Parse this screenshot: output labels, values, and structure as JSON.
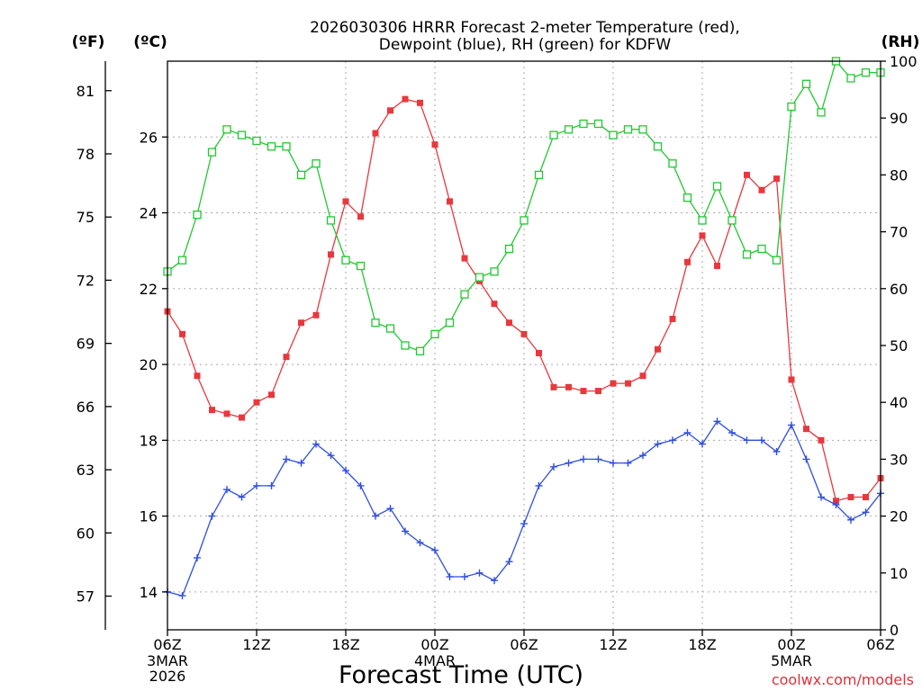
{
  "chart_data": {
    "type": "line",
    "title": "2026030306 HRRR Forecast 2-meter Temperature (red),",
    "subtitle": "Dewpoint (blue), RH (green) for KDFW",
    "xlabel": "Forecast Time (UTC)",
    "credit": "coolwx.com/models",
    "units": {
      "fahrenheit": "(ºF)",
      "celsius": "(ºC)",
      "rh": "(RH)"
    },
    "x_range_hours": [
      0,
      48
    ],
    "celsius_range": [
      13,
      28
    ],
    "rh_range": [
      0,
      100
    ],
    "x_ticks": [
      {
        "hour": 0,
        "label": "06Z",
        "sub1": "3MAR",
        "sub2": "2026"
      },
      {
        "hour": 6,
        "label": "12Z",
        "sub1": "",
        "sub2": ""
      },
      {
        "hour": 12,
        "label": "18Z",
        "sub1": "",
        "sub2": ""
      },
      {
        "hour": 18,
        "label": "00Z",
        "sub1": "4MAR",
        "sub2": ""
      },
      {
        "hour": 24,
        "label": "06Z",
        "sub1": "",
        "sub2": ""
      },
      {
        "hour": 30,
        "label": "12Z",
        "sub1": "",
        "sub2": ""
      },
      {
        "hour": 36,
        "label": "18Z",
        "sub1": "",
        "sub2": ""
      },
      {
        "hour": 42,
        "label": "00Z",
        "sub1": "5MAR",
        "sub2": ""
      },
      {
        "hour": 48,
        "label": "06Z",
        "sub1": "",
        "sub2": ""
      }
    ],
    "celsius_ticks": [
      "14",
      "16",
      "18",
      "20",
      "22",
      "24",
      "26"
    ],
    "fahrenheit_ticks": [
      "57",
      "60",
      "63",
      "66",
      "69",
      "72",
      "75",
      "78",
      "81"
    ],
    "rh_ticks": [
      "0",
      "10",
      "20",
      "30",
      "40",
      "50",
      "60",
      "70",
      "80",
      "90",
      "100"
    ],
    "series": [
      {
        "name": "Temperature",
        "color": "#e8383d",
        "marker": "filled-square",
        "values": [
          21.4,
          20.8,
          19.7,
          18.8,
          18.7,
          18.6,
          19.0,
          19.2,
          20.2,
          21.1,
          21.3,
          22.9,
          24.3,
          23.9,
          26.1,
          26.7,
          27.0,
          26.9,
          25.8,
          24.3,
          22.8,
          22.2,
          21.6,
          21.1,
          20.8,
          20.3,
          19.4,
          19.4,
          19.3,
          19.3,
          19.5,
          19.5,
          19.7,
          20.4,
          21.2,
          22.7,
          23.4,
          22.6,
          23.8,
          25.0,
          24.6,
          24.9,
          19.6,
          18.3,
          18.0,
          16.4,
          16.5,
          16.5,
          17.0
        ]
      },
      {
        "name": "Dewpoint",
        "color": "#2f4ee0",
        "marker": "plus",
        "values": [
          14.0,
          13.9,
          14.9,
          16.0,
          16.7,
          16.5,
          16.8,
          16.8,
          17.5,
          17.4,
          17.9,
          17.6,
          17.2,
          16.8,
          16.0,
          16.2,
          15.6,
          15.3,
          15.1,
          14.4,
          14.4,
          14.5,
          14.3,
          14.8,
          15.8,
          16.8,
          17.3,
          17.4,
          17.5,
          17.5,
          17.4,
          17.4,
          17.6,
          17.9,
          18.0,
          18.2,
          17.9,
          18.5,
          18.2,
          18.0,
          18.0,
          17.7,
          18.4,
          17.5,
          16.5,
          16.3,
          15.9,
          16.1,
          16.6
        ]
      },
      {
        "name": "RH",
        "color": "#21c832",
        "marker": "open-square",
        "values": [
          63,
          65,
          73,
          84,
          88,
          87,
          86,
          85,
          85,
          80,
          82,
          72,
          65,
          64,
          54,
          53,
          50,
          49,
          52,
          54,
          59,
          62,
          63,
          67,
          72,
          80,
          87,
          88,
          89,
          89,
          87,
          88,
          88,
          85,
          82,
          76,
          72,
          78,
          72,
          66,
          67,
          65,
          92,
          96,
          91,
          100,
          97,
          98,
          98
        ]
      }
    ]
  }
}
